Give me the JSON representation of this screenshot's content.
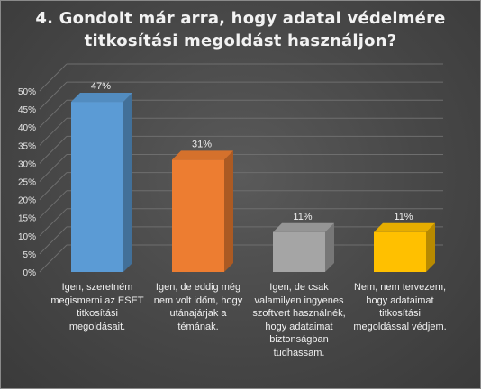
{
  "chart_data": {
    "type": "bar",
    "title_lines": [
      "4. Gondolt már arra, hogy adatai védelmére",
      "titkosítási megoldást használjon?"
    ],
    "categories": [
      "Igen, szeretném megismerni az ESET titkosítási megoldásait.",
      "Igen, de eddig még nem volt időm, hogy utánajárjak a témának.",
      "Igen, de csak valamilyen ingyenes szoftvert használnék, hogy adataimat biztonságban tudhassam.",
      "Nem, nem tervezem, hogy adataimat titkosítási megoldással védjem."
    ],
    "values": [
      47,
      31,
      11,
      11
    ],
    "value_labels": [
      "47%",
      "31%",
      "11%",
      "11%"
    ],
    "colors": [
      "#5b9bd5",
      "#ed7d31",
      "#a5a5a5",
      "#ffc000"
    ],
    "ylim": [
      0,
      50
    ],
    "yticks": [
      "0%",
      "5%",
      "10%",
      "15%",
      "20%",
      "25%",
      "30%",
      "35%",
      "40%",
      "45%",
      "50%"
    ],
    "grid": true,
    "legend": "none"
  }
}
